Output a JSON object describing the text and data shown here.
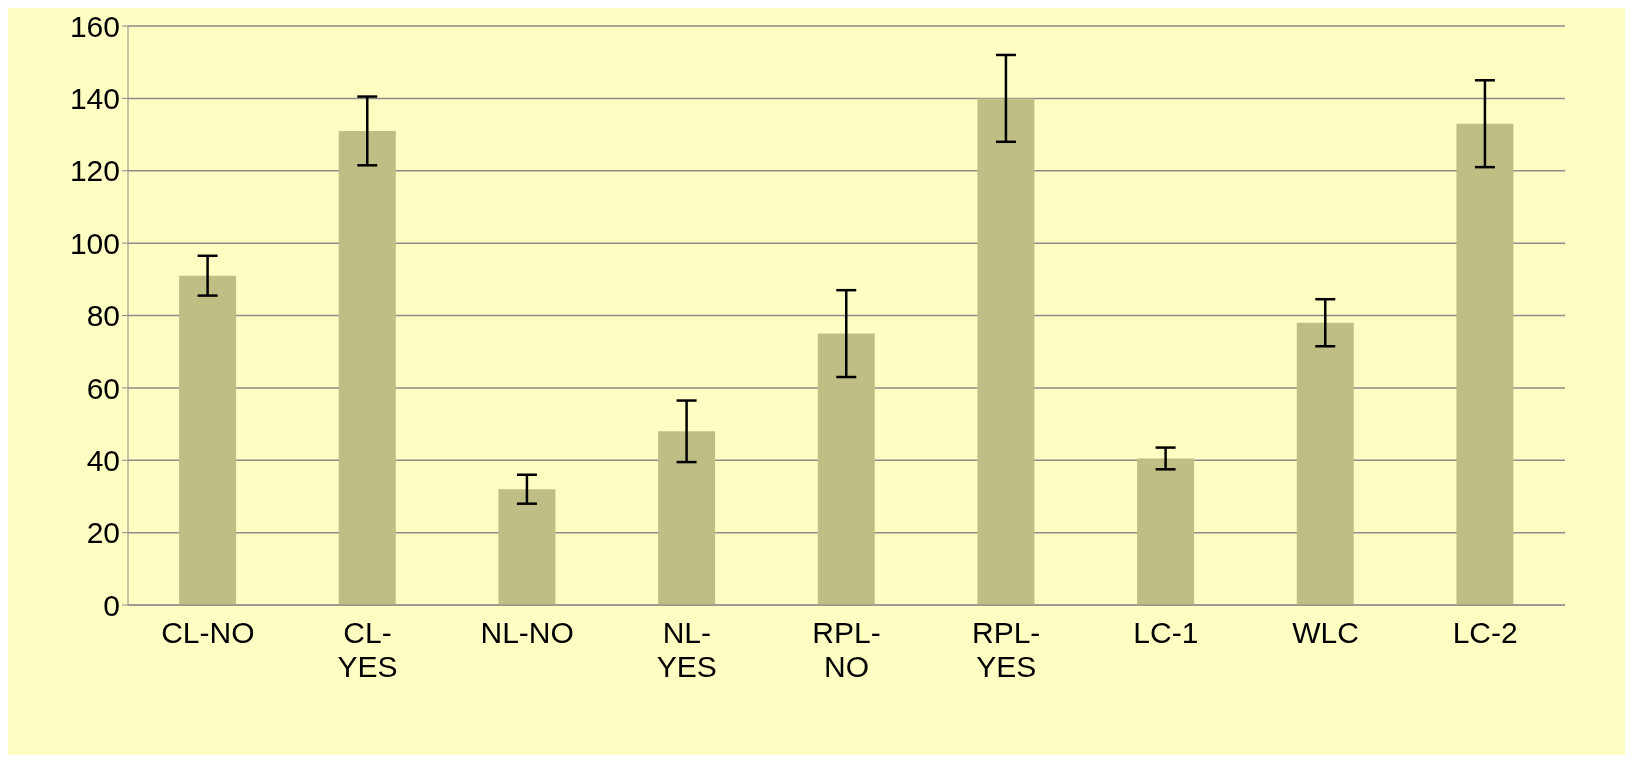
{
  "chart_data": {
    "type": "bar",
    "categories": [
      "CL-NO",
      "CL-YES",
      "NL-NO",
      "NL-YES",
      "RPL-NO",
      "RPL-YES",
      "LC-1",
      "WLC",
      "LC-2"
    ],
    "values": [
      91,
      131,
      32,
      48,
      75,
      140,
      40.5,
      78,
      133
    ],
    "errors": [
      5.5,
      9.5,
      4,
      8.5,
      12,
      12,
      3,
      6.5,
      12
    ],
    "color": "#bfbf85",
    "ylim": [
      0,
      160
    ],
    "yticks": [
      0,
      20,
      40,
      60,
      80,
      100,
      120,
      140,
      160
    ],
    "grid": "y"
  }
}
